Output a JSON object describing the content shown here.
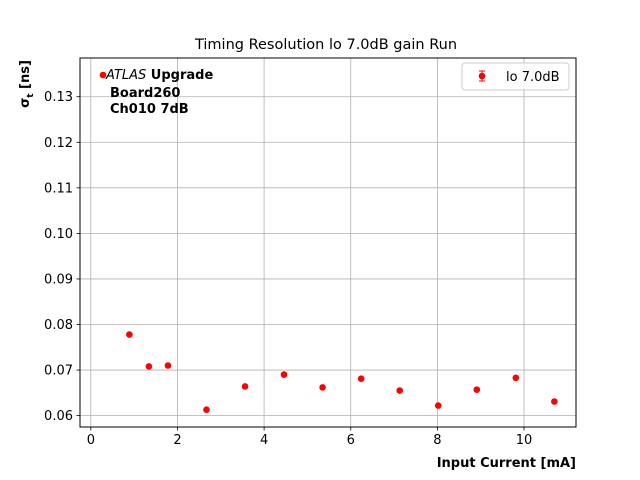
{
  "chart_data": {
    "type": "scatter",
    "title": "Timing Resolution lo 7.0dB gain Run",
    "xlabel": "Input Current [mA]",
    "ylabel_main": "σ",
    "ylabel_sub": "t",
    "ylabel_unit": " [ns]",
    "xlim": [
      -0.25,
      11.2
    ],
    "ylim": [
      0.0575,
      0.1385
    ],
    "xticks": [
      0,
      2,
      4,
      6,
      8,
      10
    ],
    "xtick_labels": [
      "0",
      "2",
      "4",
      "6",
      "8",
      "10"
    ],
    "yticks": [
      0.06,
      0.07,
      0.08,
      0.09,
      0.1,
      0.11,
      0.12,
      0.13
    ],
    "ytick_labels": [
      "0.06",
      "0.07",
      "0.08",
      "0.09",
      "0.10",
      "0.11",
      "0.12",
      "0.13"
    ],
    "grid": true,
    "legend_position": "top-right",
    "series": [
      {
        "name": "lo 7.0dB",
        "color": "#ff0000",
        "x": [
          0.89,
          1.34,
          1.78,
          2.67,
          3.56,
          4.46,
          5.35,
          6.24,
          7.13,
          8.02,
          8.91,
          9.81,
          10.7
        ],
        "y": [
          0.0778,
          0.0708,
          0.071,
          0.0613,
          0.0664,
          0.069,
          0.0662,
          0.0681,
          0.0655,
          0.0622,
          0.0657,
          0.0683,
          0.0631
        ]
      }
    ],
    "annotation": {
      "atlas": "ATLAS",
      "upgrade": " Upgrade",
      "line2": "Board260",
      "line3": "Ch010 7dB"
    }
  }
}
